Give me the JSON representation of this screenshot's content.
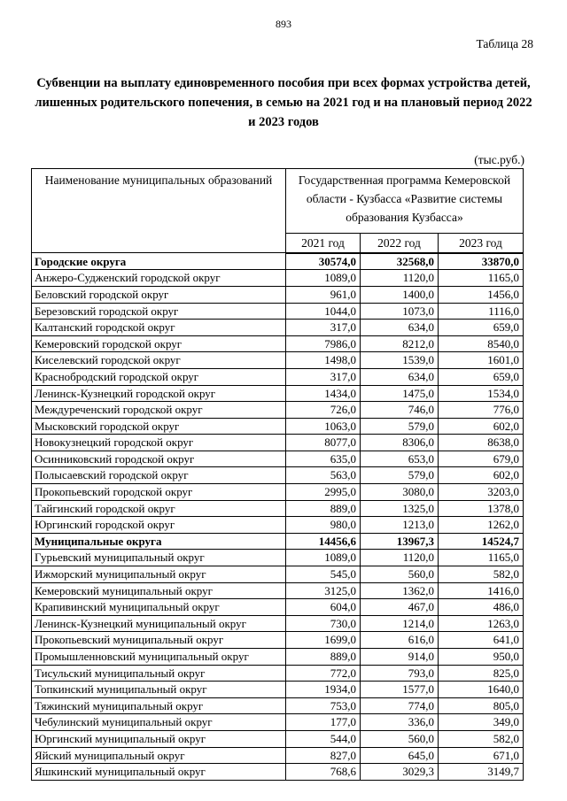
{
  "page": {
    "number": "893",
    "table_label": "Таблица 28",
    "title": "Субвенции на выплату единовременного пособия при всех формах устройства детей, лишенных родительского попечения, в семью на 2021 год и на плановый период 2022 и 2023 годов",
    "units": "(тыс.руб.)"
  },
  "table": {
    "name_header": "Наименование муниципальных образований",
    "program_header": "Государственная программа Кемеровской области - Кузбасса «Развитие системы образования Кузбасса»",
    "year_headers": [
      "2021 год",
      "2022 год",
      "2023 год"
    ],
    "sections": [
      {
        "label": "Городские округа",
        "totals": [
          "30574,0",
          "32568,0",
          "33870,0"
        ],
        "rows": [
          [
            "Анжеро-Судженский городской округ",
            "1089,0",
            "1120,0",
            "1165,0"
          ],
          [
            "Беловский городской округ",
            "961,0",
            "1400,0",
            "1456,0"
          ],
          [
            "Березовский городской округ",
            "1044,0",
            "1073,0",
            "1116,0"
          ],
          [
            "Калтанский городской округ",
            "317,0",
            "634,0",
            "659,0"
          ],
          [
            "Кемеровский городской округ",
            "7986,0",
            "8212,0",
            "8540,0"
          ],
          [
            "Киселевский городской округ",
            "1498,0",
            "1539,0",
            "1601,0"
          ],
          [
            "Краснобродский городской округ",
            "317,0",
            "634,0",
            "659,0"
          ],
          [
            "Ленинск-Кузнецкий городской округ",
            "1434,0",
            "1475,0",
            "1534,0"
          ],
          [
            "Междуреченский городской округ",
            "726,0",
            "746,0",
            "776,0"
          ],
          [
            "Мысковский городской округ",
            "1063,0",
            "579,0",
            "602,0"
          ],
          [
            "Новокузнецкий городской округ",
            "8077,0",
            "8306,0",
            "8638,0"
          ],
          [
            "Осинниковский городской округ",
            "635,0",
            "653,0",
            "679,0"
          ],
          [
            "Полысаевский городской округ",
            "563,0",
            "579,0",
            "602,0"
          ],
          [
            "Прокопьевский городской округ",
            "2995,0",
            "3080,0",
            "3203,0"
          ],
          [
            "Тайгинский городской округ",
            "889,0",
            "1325,0",
            "1378,0"
          ],
          [
            "Юргинский городской округ",
            "980,0",
            "1213,0",
            "1262,0"
          ]
        ]
      },
      {
        "label": "Муниципальные округа",
        "totals": [
          "14456,6",
          "13967,3",
          "14524,7"
        ],
        "rows": [
          [
            "Гурьевский муниципальный округ",
            "1089,0",
            "1120,0",
            "1165,0"
          ],
          [
            "Ижморский муниципальный округ",
            "545,0",
            "560,0",
            "582,0"
          ],
          [
            "Кемеровский муниципальный округ",
            "3125,0",
            "1362,0",
            "1416,0"
          ],
          [
            "Крапивинский муниципальный округ",
            "604,0",
            "467,0",
            "486,0"
          ],
          [
            "Ленинск-Кузнецкий муниципальный округ",
            "730,0",
            "1214,0",
            "1263,0"
          ],
          [
            "Прокопьевский муниципальный округ",
            "1699,0",
            "616,0",
            "641,0"
          ],
          [
            "Промышленновский муниципальный округ",
            "889,0",
            "914,0",
            "950,0"
          ],
          [
            "Тисульский муниципальный округ",
            "772,0",
            "793,0",
            "825,0"
          ],
          [
            "Топкинский муниципальный округ",
            "1934,0",
            "1577,0",
            "1640,0"
          ],
          [
            "Тяжинский муниципальный округ",
            "753,0",
            "774,0",
            "805,0"
          ],
          [
            "Чебулинский муниципальный округ",
            "177,0",
            "336,0",
            "349,0"
          ],
          [
            "Юргинский муниципальный округ",
            "544,0",
            "560,0",
            "582,0"
          ],
          [
            "Яйский муниципальный округ",
            "827,0",
            "645,0",
            "671,0"
          ],
          [
            "Яшкинский муниципальный округ",
            "768,6",
            "3029,3",
            "3149,7"
          ]
        ]
      }
    ]
  }
}
